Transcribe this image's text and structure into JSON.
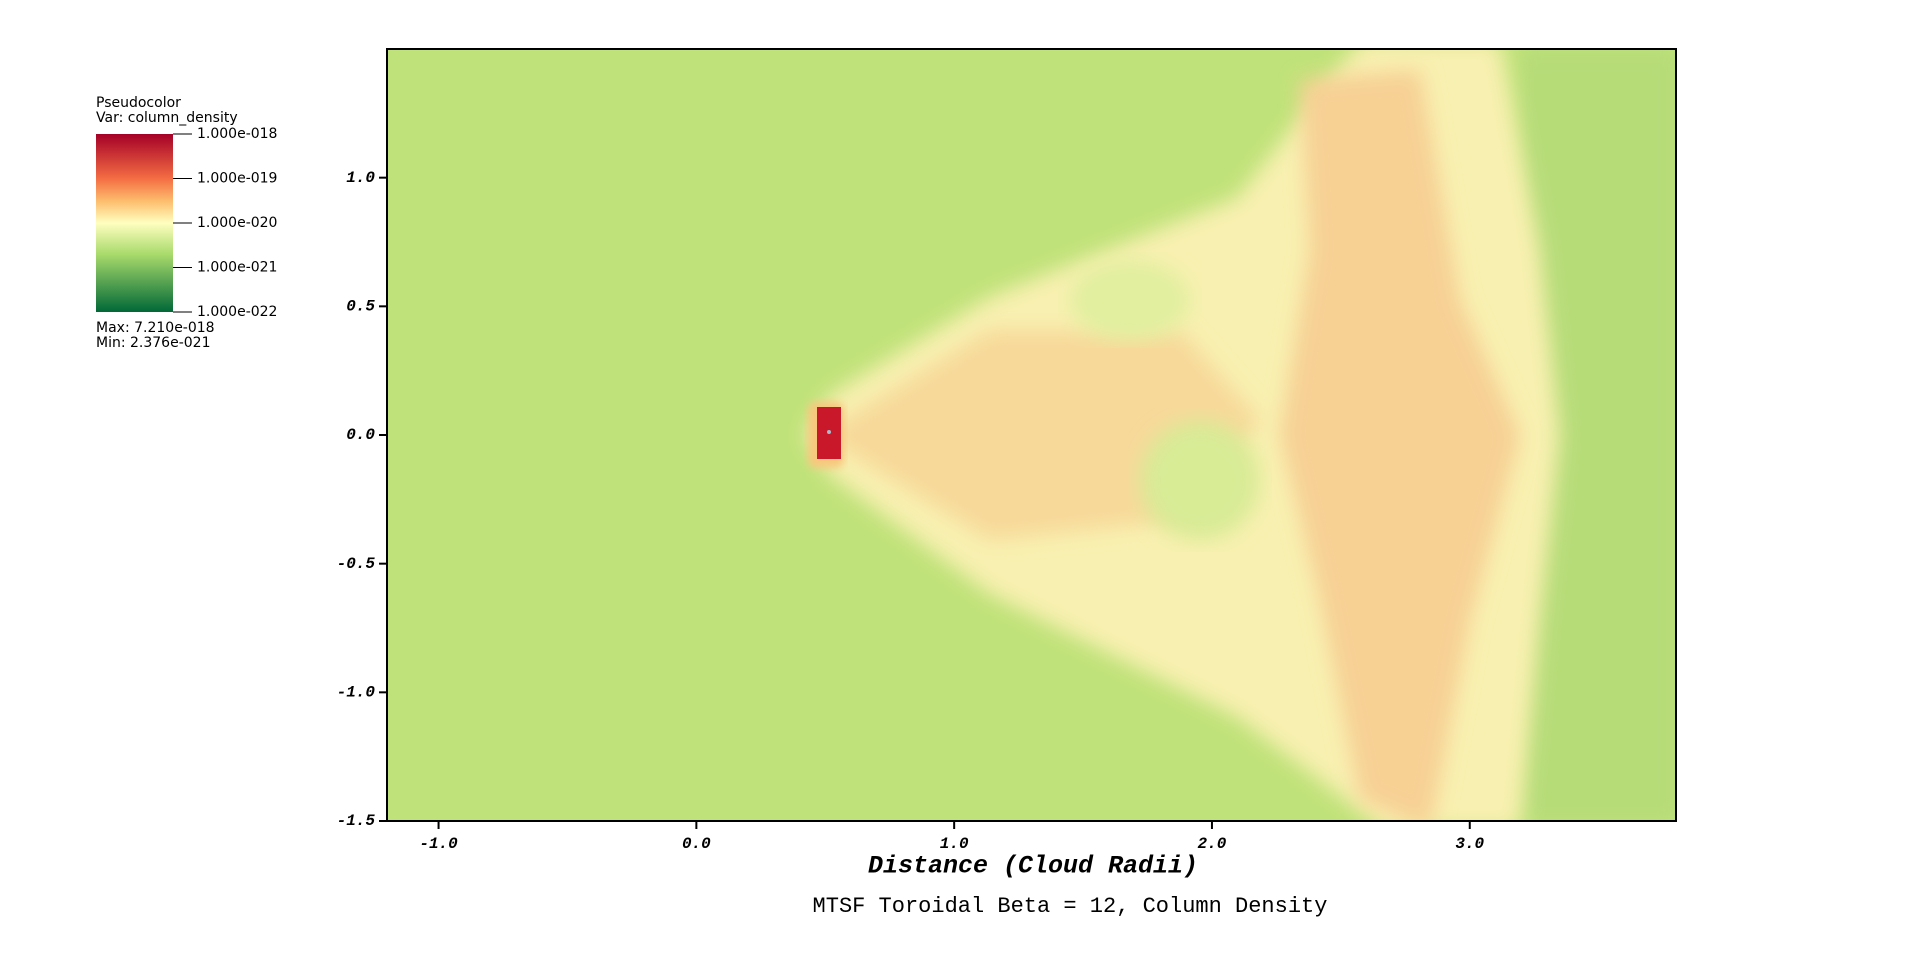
{
  "chart_data": {
    "type": "pseudocolor",
    "title": "MTSF Toroidal Beta = 12, Column Density",
    "x_label": "Distance (Cloud Radii)",
    "xlim": [
      -1.2,
      3.8
    ],
    "xticks": [
      {
        "value": -1,
        "label": "-1.0"
      },
      {
        "value": 0,
        "label": "0.0"
      },
      {
        "value": 1,
        "label": "1.0"
      },
      {
        "value": 2,
        "label": "2.0"
      },
      {
        "value": 3,
        "label": "3.0"
      }
    ],
    "ylim": [
      -1.5,
      1.5
    ],
    "yticks": [
      -1.5,
      {
        "value": -1,
        "label": "-1.0"
      },
      -0.5,
      {
        "value": 0,
        "label": "0.0"
      },
      0.5,
      {
        "value": 1,
        "label": "1.0"
      }
    ],
    "legend": {
      "plot": "Pseudocolor",
      "variable": "Var: column_density",
      "log_scale": true,
      "clim": [
        1e-22,
        1e-18
      ],
      "ticks": [
        {
          "value": 1e-18,
          "label": "1.000e-018"
        },
        {
          "value": 1e-19,
          "label": "1.000e-019"
        },
        {
          "value": 1e-20,
          "label": "1.000e-020"
        },
        {
          "value": 1e-21,
          "label": "1.000e-021"
        },
        {
          "value": 1e-22,
          "label": "1.000e-022"
        }
      ],
      "max": "Max:  7.210e-018",
      "min": "Min:  2.376e-021"
    }
  }
}
